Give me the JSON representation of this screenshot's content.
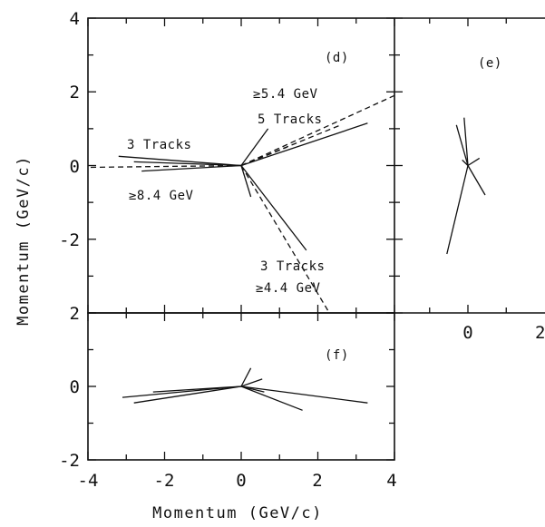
{
  "panels": {
    "d": {
      "label": "(d)"
    },
    "e": {
      "label": "(e)"
    },
    "f": {
      "label": "(f)"
    }
  },
  "axes": {
    "ylabel": "Momentum (GeV/c)",
    "xlabel": "Momentum (GeV/c)",
    "d_y_ticks": [
      "4",
      "2",
      "0",
      "-2"
    ],
    "f_y_ticks": [
      "2",
      "0",
      "-2"
    ],
    "x_ticks": [
      "-4",
      "-2",
      "0",
      "2",
      "4"
    ],
    "e_x_ticks": [
      "0",
      "2"
    ]
  },
  "annotations": {
    "jet_left_top": "3 Tracks",
    "jet_left_bottom": "≥8.4 GeV",
    "jet_right_top": "≥5.4 GeV",
    "jet_right_bottom": "5 Tracks",
    "jet_lower_top": "3 Tracks",
    "jet_lower_bottom": "≥4.4 GeV"
  },
  "chart_data": [
    {
      "type": "line",
      "panel": "d",
      "title": "",
      "xlabel": "",
      "ylabel": "Momentum (GeV/c)",
      "xlim": [
        -4,
        4
      ],
      "ylim": [
        -4,
        4
      ],
      "tracks": [
        {
          "x": [
            0,
            -3.2
          ],
          "y": [
            0,
            0.25
          ],
          "style": "solid"
        },
        {
          "x": [
            0,
            -2.8
          ],
          "y": [
            0,
            0.1
          ],
          "style": "solid"
        },
        {
          "x": [
            0,
            -2.6
          ],
          "y": [
            0,
            -0.15
          ],
          "style": "solid"
        },
        {
          "x": [
            0,
            -4.0
          ],
          "y": [
            0,
            -0.05
          ],
          "style": "dashed"
        },
        {
          "x": [
            0,
            0.7
          ],
          "y": [
            0,
            1.0
          ],
          "style": "solid"
        },
        {
          "x": [
            0,
            3.3
          ],
          "y": [
            0,
            1.15
          ],
          "style": "solid"
        },
        {
          "x": [
            0,
            4.0
          ],
          "y": [
            0,
            1.9
          ],
          "style": "dashed"
        },
        {
          "x": [
            0,
            2.6
          ],
          "y": [
            0,
            1.1
          ],
          "style": "dashed"
        },
        {
          "x": [
            0,
            1.2
          ],
          "y": [
            0,
            0.5
          ],
          "style": "dashed"
        },
        {
          "x": [
            0,
            0.25
          ],
          "y": [
            0,
            -0.85
          ],
          "style": "solid"
        },
        {
          "x": [
            0,
            1.7
          ],
          "y": [
            0,
            -2.3
          ],
          "style": "solid"
        },
        {
          "x": [
            0,
            2.3
          ],
          "y": [
            0,
            -4.0
          ],
          "style": "dashed"
        }
      ]
    },
    {
      "type": "line",
      "panel": "e",
      "title": "",
      "xlim": [
        -2,
        2
      ],
      "ylim": [
        -4,
        4
      ],
      "tracks": [
        {
          "x": [
            0,
            -0.55
          ],
          "y": [
            0,
            -2.4
          ],
          "style": "solid"
        },
        {
          "x": [
            0,
            -0.1
          ],
          "y": [
            0,
            1.3
          ],
          "style": "solid"
        },
        {
          "x": [
            0,
            -0.3
          ],
          "y": [
            0,
            1.1
          ],
          "style": "solid"
        },
        {
          "x": [
            0,
            0.45
          ],
          "y": [
            0,
            -0.8
          ],
          "style": "solid"
        },
        {
          "x": [
            0,
            0.3
          ],
          "y": [
            0,
            0.2
          ],
          "style": "solid"
        },
        {
          "x": [
            0,
            -0.15
          ],
          "y": [
            0,
            0.15
          ],
          "style": "solid"
        }
      ]
    },
    {
      "type": "line",
      "panel": "f",
      "title": "",
      "xlabel": "Momentum (GeV/c)",
      "ylabel": "Momentum (GeV/c)",
      "xlim": [
        -4,
        4
      ],
      "ylim": [
        -2,
        2
      ],
      "tracks": [
        {
          "x": [
            0,
            -3.1
          ],
          "y": [
            0,
            -0.3
          ],
          "style": "solid"
        },
        {
          "x": [
            0,
            -2.8
          ],
          "y": [
            0,
            -0.45
          ],
          "style": "solid"
        },
        {
          "x": [
            0,
            -2.3
          ],
          "y": [
            0,
            -0.15
          ],
          "style": "solid"
        },
        {
          "x": [
            0,
            3.3
          ],
          "y": [
            0,
            -0.45
          ],
          "style": "solid"
        },
        {
          "x": [
            0,
            1.6
          ],
          "y": [
            0,
            -0.65
          ],
          "style": "solid"
        },
        {
          "x": [
            0,
            0.6
          ],
          "y": [
            0,
            -0.15
          ],
          "style": "solid"
        },
        {
          "x": [
            0,
            0.25
          ],
          "y": [
            0,
            0.5
          ],
          "style": "solid"
        },
        {
          "x": [
            0,
            0.55
          ],
          "y": [
            0,
            0.2
          ],
          "style": "solid"
        }
      ]
    }
  ]
}
